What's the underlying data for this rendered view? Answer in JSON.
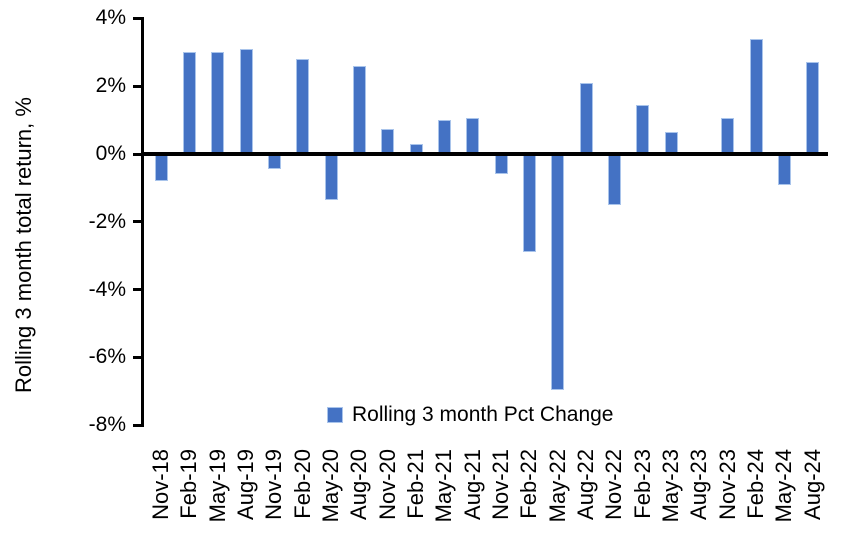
{
  "chart_data": {
    "type": "bar",
    "title": "",
    "xlabel": "",
    "ylabel": "Rolling 3 month total return, %",
    "series_name": "Rolling 3 month Pct Change",
    "categories": [
      "Nov-18",
      "Feb-19",
      "May-19",
      "Aug-19",
      "Nov-19",
      "Feb-20",
      "May-20",
      "Aug-20",
      "Nov-20",
      "Feb-21",
      "May-21",
      "Aug-21",
      "Nov-21",
      "Feb-22",
      "May-22",
      "Aug-22",
      "Nov-22",
      "Feb-23",
      "May-23",
      "Aug-23",
      "Nov-23",
      "Feb-24",
      "May-24",
      "Aug-24"
    ],
    "values": [
      -0.8,
      3.0,
      3.0,
      3.1,
      -0.45,
      2.8,
      -1.35,
      2.6,
      0.75,
      0.3,
      1.0,
      1.05,
      -0.6,
      -2.9,
      -6.95,
      2.1,
      -1.5,
      1.45,
      0.65,
      0.0,
      1.05,
      3.4,
      -0.9,
      2.7
    ],
    "ylim": [
      -8,
      4
    ],
    "yticks": [
      {
        "value": 4,
        "label": "4%"
      },
      {
        "value": 2,
        "label": "2%"
      },
      {
        "value": 0,
        "label": "0%"
      },
      {
        "value": -2,
        "label": "-2%"
      },
      {
        "value": -4,
        "label": "-4%"
      },
      {
        "value": -6,
        "label": "-6%"
      },
      {
        "value": -8,
        "label": "-8%"
      }
    ],
    "grid": false,
    "legend_position": "bottom-center",
    "bar_color": "#4472C4",
    "bar_border_color": "#A9C4EB",
    "axis_color": "#000000",
    "text_color": "#000000",
    "background_color": "#FFFFFF"
  }
}
